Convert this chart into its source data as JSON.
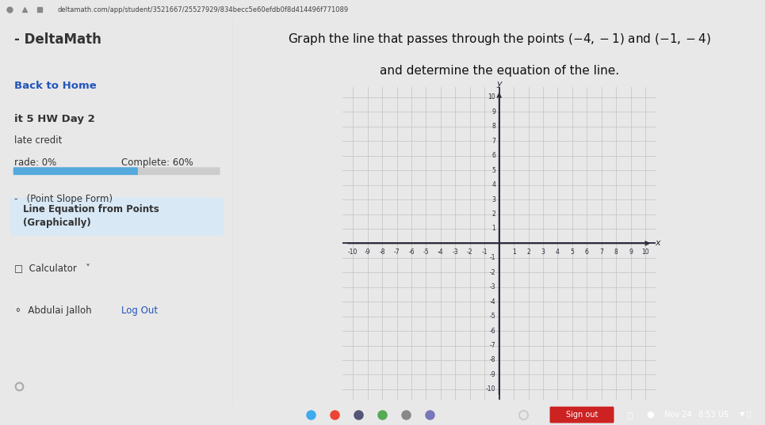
{
  "sidebar_title": "DeltaMath",
  "back_to_home": "Back to Home",
  "unit_label": "it 5 HW Day 2",
  "late_credit": "late credit",
  "grade_label": "rade: 0%",
  "complete_label": "Complete: 60%",
  "point_slope_label": "(Point Slope Form)",
  "line_eq_label": "Line Equation from Points\n(Graphically)",
  "calculator_label": "Calculator",
  "user_label": "Abdulai Jalloh",
  "logout_label": "Log Out",
  "x_label": "x",
  "y_label": "y",
  "axis_min": -10,
  "axis_max": 10,
  "point1": [
    -4,
    -1
  ],
  "point2": [
    -1,
    -4
  ],
  "page_bg": "#e8e8e8",
  "sidebar_bg": "#ececec",
  "graph_area_bg": "#e0e0e0",
  "graph_bg": "#f5f5f7",
  "grid_color": "#c8c8c8",
  "axis_color": "#2a2a3a",
  "line_color": "#000000",
  "sidebar_text_color": "#333333",
  "back_home_color": "#2255bb",
  "highlight_bg": "#d8e8f5",
  "progress_bar_color": "#55aadd",
  "progress_bar_bg": "#cccccc",
  "title_color": "#111111",
  "url_bar_color": "#d8d8d8",
  "url_text": "deltamath.com/app/student/3521667/25527929/834becc5e60efdb0f8d414496f771089",
  "taskbar_bg": "#1e1e2e",
  "sign_out_btn_color": "#cc2222"
}
